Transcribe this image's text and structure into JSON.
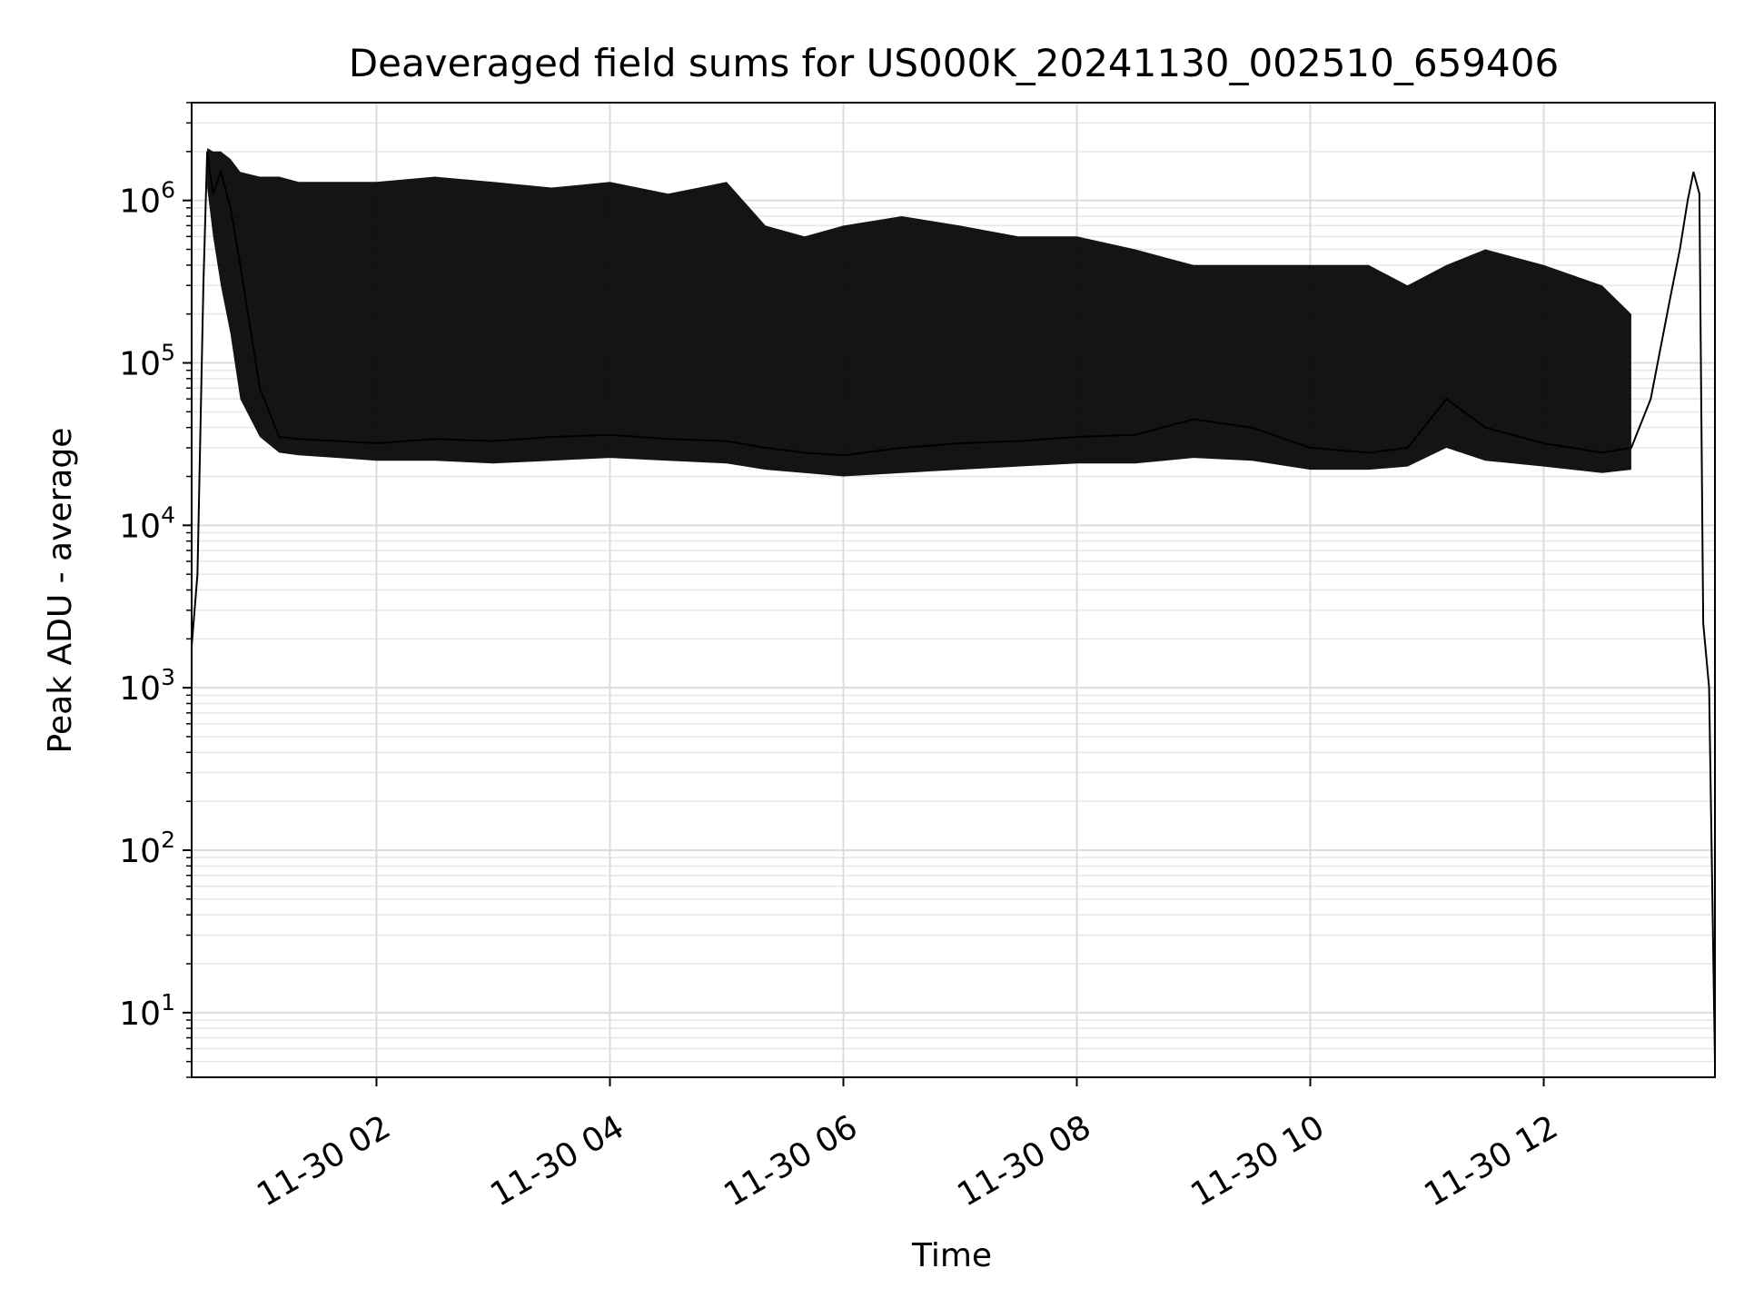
{
  "chart_data": {
    "type": "line",
    "title": "Deaveraged field sums for US000K_20241130_002510_659406",
    "xlabel": "Time",
    "ylabel": "Peak ADU - average",
    "yscale": "log",
    "ylim": [
      4,
      4000000
    ],
    "xlim": [
      "2024-11-30 00:25",
      "2024-11-30 13:28"
    ],
    "grid": true,
    "x_ticks": [
      {
        "label": "11-30 02",
        "value": "2024-11-30 02:00"
      },
      {
        "label": "11-30 04",
        "value": "2024-11-30 04:00"
      },
      {
        "label": "11-30 06",
        "value": "2024-11-30 06:00"
      },
      {
        "label": "11-30 08",
        "value": "2024-11-30 08:00"
      },
      {
        "label": "11-30 10",
        "value": "2024-11-30 10:00"
      },
      {
        "label": "11-30 12",
        "value": "2024-11-30 12:00"
      }
    ],
    "y_ticks": [
      {
        "base": "10",
        "exp": "1",
        "value": 10
      },
      {
        "base": "10",
        "exp": "2",
        "value": 100
      },
      {
        "base": "10",
        "exp": "3",
        "value": 1000
      },
      {
        "base": "10",
        "exp": "4",
        "value": 10000
      },
      {
        "base": "10",
        "exp": "5",
        "value": 100000
      },
      {
        "base": "10",
        "exp": "6",
        "value": 1000000
      }
    ],
    "series": [
      {
        "color": "#000000",
        "x": [
          "2024-11-30 00:25",
          "2024-11-30 00:28",
          "2024-11-30 00:31",
          "2024-11-30 00:33",
          "2024-11-30 00:36",
          "2024-11-30 00:40",
          "2024-11-30 00:45",
          "2024-11-30 00:50",
          "2024-11-30 01:00",
          "2024-11-30 01:10",
          "2024-11-30 01:20",
          "2024-11-30 01:40",
          "2024-11-30 02:00",
          "2024-11-30 02:30",
          "2024-11-30 03:00",
          "2024-11-30 03:30",
          "2024-11-30 04:00",
          "2024-11-30 04:30",
          "2024-11-30 05:00",
          "2024-11-30 05:20",
          "2024-11-30 05:40",
          "2024-11-30 06:00",
          "2024-11-30 06:30",
          "2024-11-30 07:00",
          "2024-11-30 07:30",
          "2024-11-30 08:00",
          "2024-11-30 08:30",
          "2024-11-30 09:00",
          "2024-11-30 09:30",
          "2024-11-30 10:00",
          "2024-11-30 10:30",
          "2024-11-30 10:50",
          "2024-11-30 11:10",
          "2024-11-30 11:30",
          "2024-11-30 12:00",
          "2024-11-30 12:30",
          "2024-11-30 12:45",
          "2024-11-30 12:55",
          "2024-11-30 13:05",
          "2024-11-30 13:10",
          "2024-11-30 13:14",
          "2024-11-30 13:17",
          "2024-11-30 13:20",
          "2024-11-30 13:22",
          "2024-11-30 13:25",
          "2024-11-30 13:28"
        ],
        "y": [
          1800,
          5000,
          300000,
          2000000,
          1100000,
          1500000,
          900000,
          400000,
          70000,
          35000,
          34000,
          33000,
          32000,
          34000,
          33000,
          35000,
          36000,
          34000,
          33000,
          30000,
          28000,
          27000,
          30000,
          32000,
          33000,
          35000,
          36000,
          45000,
          40000,
          30000,
          28000,
          30000,
          60000,
          40000,
          32000,
          28000,
          30000,
          60000,
          250000,
          500000,
          1000000,
          1500000,
          1100000,
          2500,
          1000,
          5
        ],
        "band_high": [
          null,
          null,
          null,
          2100000,
          2000000,
          2000000,
          1800000,
          1500000,
          1400000,
          1400000,
          1300000,
          1300000,
          1300000,
          1400000,
          1300000,
          1200000,
          1300000,
          1100000,
          1300000,
          700000,
          600000,
          700000,
          800000,
          700000,
          600000,
          600000,
          500000,
          400000,
          400000,
          400000,
          400000,
          300000,
          400000,
          500000,
          400000,
          300000,
          200000,
          null,
          null,
          null,
          null,
          null,
          null,
          null,
          null,
          null
        ],
        "band_low": [
          null,
          null,
          null,
          1200000,
          600000,
          300000,
          150000,
          60000,
          35000,
          28000,
          27000,
          26000,
          25000,
          25000,
          24000,
          25000,
          26000,
          25000,
          24000,
          22000,
          21000,
          20000,
          21000,
          22000,
          23000,
          24000,
          24000,
          26000,
          25000,
          22000,
          22000,
          23000,
          30000,
          25000,
          23000,
          21000,
          22000,
          null,
          null,
          null,
          null,
          null,
          null,
          null,
          null,
          null
        ]
      }
    ]
  }
}
